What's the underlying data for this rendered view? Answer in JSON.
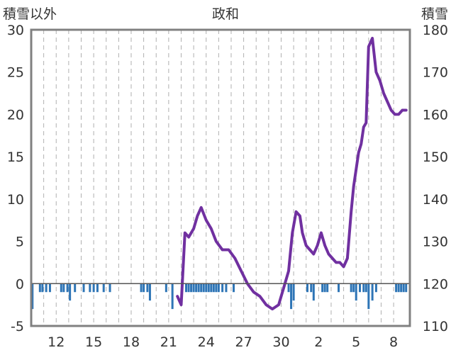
{
  "chart_data": {
    "type": "line",
    "title": "政和",
    "y_left_label": "積雪以外",
    "y_right_label": "積雪",
    "y_left": {
      "min": -5,
      "max": 30,
      "ticks": [
        "30",
        "25",
        "20",
        "15",
        "10",
        "5",
        "0",
        "-5"
      ],
      "tick_values": [
        30,
        25,
        20,
        15,
        10,
        5,
        0,
        -5
      ]
    },
    "y_right": {
      "min": 110,
      "max": 180,
      "ticks": [
        "180",
        "170",
        "160",
        "150",
        "140",
        "130",
        "120",
        "110"
      ],
      "tick_values": [
        180,
        170,
        160,
        150,
        140,
        130,
        120,
        110
      ]
    },
    "x_ticks": [
      {
        "label": "12",
        "pos": 2
      },
      {
        "label": "15",
        "pos": 5
      },
      {
        "label": "18",
        "pos": 8
      },
      {
        "label": "21",
        "pos": 11
      },
      {
        "label": "24",
        "pos": 14
      },
      {
        "label": "27",
        "pos": 17
      },
      {
        "label": "30",
        "pos": 20
      },
      {
        "label": "2",
        "pos": 23
      },
      {
        "label": "5",
        "pos": 26
      },
      {
        "label": "8",
        "pos": 29
      }
    ],
    "x_range": [
      0,
      30.3
    ],
    "grid": "vertical-dashed",
    "colors": {
      "line": "#7030a0",
      "bars": "#2e75b6",
      "frame": "#808080",
      "zero": "#555555"
    },
    "series": [
      {
        "axis": "right",
        "kind": "line",
        "x": [
          11.7,
          12.0,
          12.3,
          12.6,
          13.0,
          13.3,
          13.6,
          14.0,
          14.4,
          14.8,
          15.3,
          15.8,
          16.3,
          16.8,
          17.3,
          17.8,
          18.3,
          18.8,
          19.3,
          19.8,
          20.3,
          20.6,
          20.9,
          21.2,
          21.5,
          21.7,
          22.0,
          22.3,
          22.6,
          22.9,
          23.2,
          23.5,
          23.8,
          24.1,
          24.4,
          24.7,
          25.0,
          25.3,
          25.6,
          25.8,
          26.0,
          26.2,
          26.4,
          26.6,
          26.8,
          27.0,
          27.3,
          27.6,
          27.9,
          28.2,
          28.5,
          28.8,
          29.1,
          29.4,
          29.7,
          30.0
        ],
        "y": [
          117,
          115,
          132,
          131,
          133,
          136,
          138,
          135,
          133,
          130,
          128,
          128,
          126,
          123,
          120,
          118,
          117,
          115,
          114,
          115,
          120,
          123,
          132,
          137,
          136,
          132,
          129,
          128,
          127,
          129,
          132,
          129,
          127,
          126,
          125,
          125,
          124,
          126,
          137,
          143,
          147,
          151,
          153,
          157,
          158,
          176,
          178,
          170,
          168,
          165,
          163,
          161,
          160,
          160,
          161,
          161
        ]
      },
      {
        "axis": "left",
        "kind": "bar",
        "x": [
          0.1,
          0.7,
          0.9,
          1.2,
          1.5,
          2.4,
          2.6,
          2.9,
          3.1,
          3.5,
          4.2,
          4.7,
          5.0,
          5.3,
          5.8,
          6.3,
          8.8,
          9.0,
          9.3,
          9.5,
          10.8,
          11.3,
          12.4,
          12.6,
          12.8,
          13.0,
          13.2,
          13.4,
          13.6,
          13.8,
          14.0,
          14.2,
          14.4,
          14.6,
          14.8,
          15.0,
          15.3,
          15.6,
          16.2,
          20.6,
          20.8,
          21.0,
          22.1,
          22.4,
          22.6,
          23.3,
          23.5,
          23.7,
          24.6,
          25.6,
          25.8,
          26.0,
          26.3,
          26.6,
          26.8,
          27.0,
          27.3,
          27.6,
          29.2,
          29.4,
          29.6,
          29.8,
          30.0
        ],
        "y": [
          -3,
          -1,
          -1,
          -1,
          -1,
          -1,
          -1,
          -1,
          -2,
          -1,
          -1,
          -1,
          -1,
          -1,
          -1,
          -1,
          -1,
          -1,
          -1,
          -2,
          -1,
          -3,
          -1,
          -1,
          -1,
          -1,
          -1,
          -1,
          -1,
          -1,
          -1,
          -1,
          -1,
          -1,
          -1,
          -1,
          -1,
          -1,
          -1,
          -1,
          -3,
          -2,
          -1,
          -1,
          -2,
          -1,
          -1,
          -1,
          -1,
          -1,
          -1,
          -2,
          -1,
          -1,
          -1,
          -3,
          -2,
          -1,
          -1,
          -1,
          -1,
          -1,
          -1
        ]
      }
    ]
  }
}
